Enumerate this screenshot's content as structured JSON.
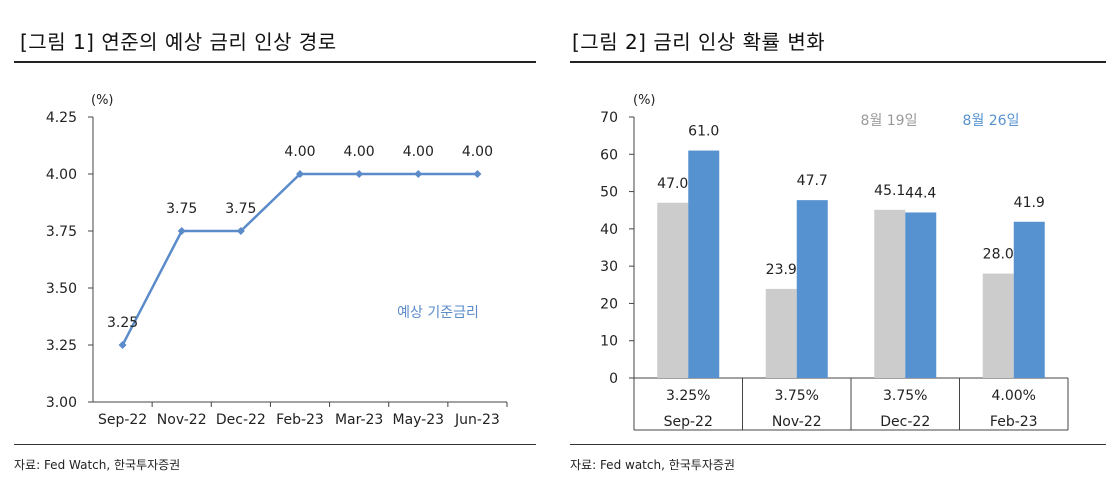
{
  "left": {
    "title": "[그림 1] 연준의 예상 금리 인상 경로",
    "source": "자료: Fed Watch, 한국투자증권",
    "chart_data": {
      "type": "line",
      "unit_label": "(%)",
      "categories": [
        "Sep-22",
        "Nov-22",
        "Dec-22",
        "Feb-23",
        "Mar-23",
        "May-23",
        "Jun-23"
      ],
      "series": [
        {
          "name": "예상 기준금리",
          "values": [
            3.25,
            3.75,
            3.75,
            4.0,
            4.0,
            4.0,
            4.0
          ],
          "data_labels": [
            "3.25",
            "3.75",
            "3.75",
            "4.00",
            "4.00",
            "4.00",
            "4.00"
          ]
        }
      ],
      "yticks": [
        "3.00",
        "3.25",
        "3.50",
        "3.75",
        "4.00",
        "4.25"
      ],
      "ylim": [
        3.0,
        4.25
      ],
      "grid": false,
      "legend_placement": "inline-right",
      "color": "#5b8bc9"
    }
  },
  "right": {
    "title": "[그림 2] 금리 인상 확률 변화",
    "source": "자료: Fed watch, 한국투자증권",
    "chart_data": {
      "type": "bar",
      "unit_label": "(%)",
      "categories": [
        "Sep-22",
        "Nov-22",
        "Dec-22",
        "Feb-23"
      ],
      "rate_labels": [
        "3.25%",
        "3.75%",
        "3.75%",
        "4.00%"
      ],
      "series": [
        {
          "name": "8월 19일",
          "values": [
            47.0,
            23.9,
            45.1,
            28.0
          ],
          "color": "#cccccc",
          "data_labels": [
            "47.0",
            "23.9",
            "45.1",
            "28.0"
          ]
        },
        {
          "name": "8월 26일",
          "values": [
            61.0,
            47.7,
            44.4,
            41.9
          ],
          "color": "#5692d0",
          "data_labels": [
            "61.0",
            "47.7",
            "44.4",
            "41.9"
          ]
        }
      ],
      "yticks": [
        "0",
        "10",
        "20",
        "30",
        "40",
        "50",
        "60",
        "70"
      ],
      "ylim": [
        0,
        70
      ],
      "grid": false,
      "legend_placement": "top-center"
    }
  }
}
